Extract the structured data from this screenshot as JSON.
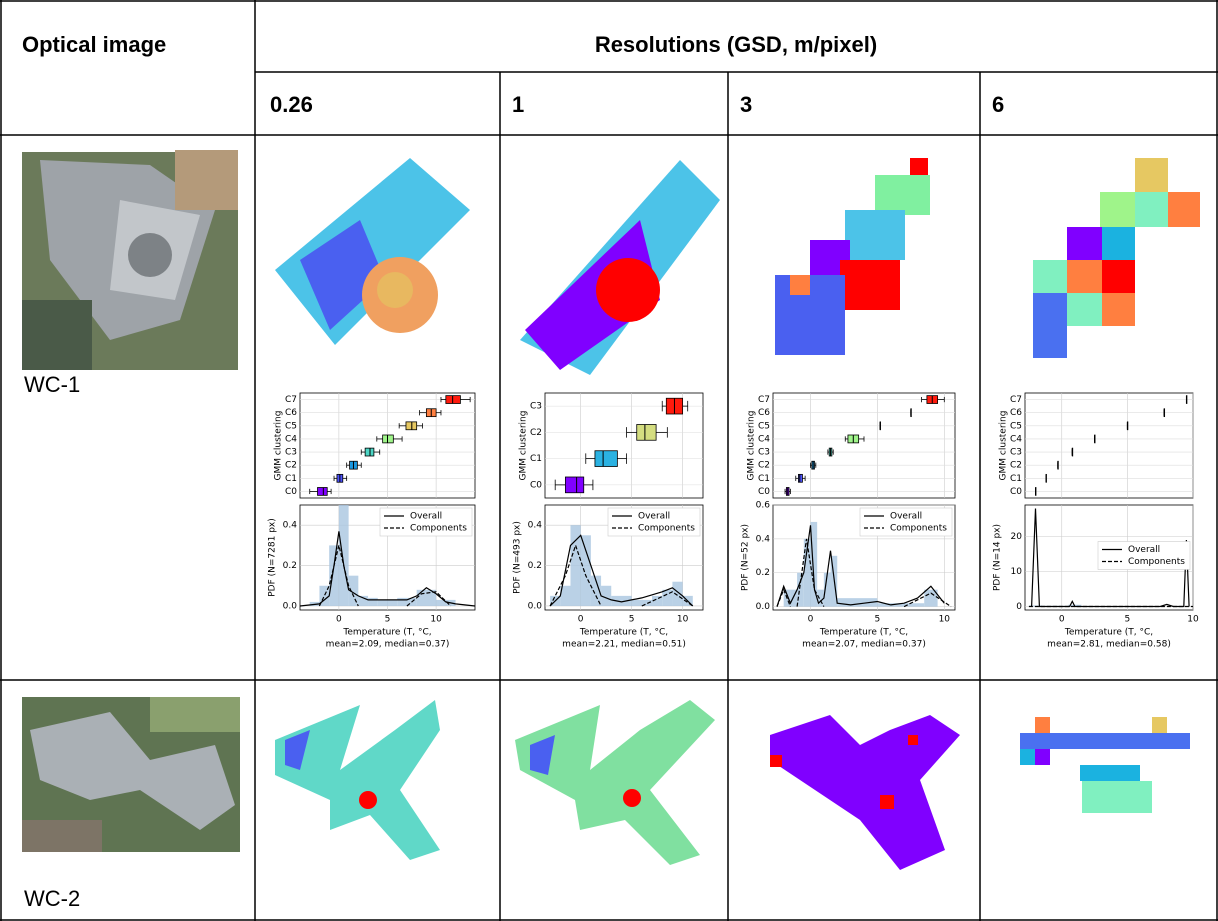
{
  "table": {
    "header": {
      "first": "Optical image",
      "span": "Resolutions (GSD, m/pixel)"
    },
    "resolutions": [
      "0.26",
      "1",
      "3",
      "6"
    ],
    "rows": [
      {
        "label": "WC-1"
      },
      {
        "label": "WC-2"
      }
    ],
    "panels": [
      {
        "type": "box_pdf",
        "box_ylabel": "GMM clustering",
        "xlim": [
          -4,
          14
        ],
        "xticks": [
          0,
          5,
          10
        ],
        "categories": [
          "C0",
          "C1",
          "C2",
          "C3",
          "C4",
          "C5",
          "C6",
          "C7"
        ],
        "colors": [
          "#8000ff",
          "#4a50f9",
          "#1996de",
          "#4cd4c4",
          "#9ff48a",
          "#e6c862",
          "#ff7f40",
          "#ff1a0d"
        ],
        "stats": [
          [
            -3,
            -2.2,
            -1.6,
            -1.2,
            -0.8
          ],
          [
            -0.5,
            -0.2,
            0.1,
            0.4,
            0.8
          ],
          [
            0.8,
            1.1,
            1.5,
            1.9,
            2.3
          ],
          [
            2.3,
            2.7,
            3.2,
            3.6,
            4.2
          ],
          [
            3.9,
            4.5,
            5,
            5.6,
            6.5
          ],
          [
            6.2,
            6.9,
            7.5,
            8,
            8.6
          ],
          [
            8.3,
            9,
            9.5,
            10,
            10.5
          ],
          [
            10.5,
            11,
            11.7,
            12.5,
            13.5
          ]
        ],
        "pdf": {
          "ylabel": "PDF (N=7281 px)",
          "xlabel": [
            "Temperature (T, °C,",
            "mean=2.09, median=0.37)"
          ],
          "ylim": [
            -0.02,
            0.5
          ],
          "yticks": [
            {
              "value": 0,
              "label": "0.0"
            },
            0.2,
            0.4
          ],
          "legend": "upper right",
          "hist_color": "#a9c6e0",
          "bins": [
            -3,
            -2,
            -1,
            0,
            1,
            2,
            3,
            4,
            6,
            8,
            10,
            12
          ],
          "counts": [
            0.02,
            0.1,
            0.3,
            0.5,
            0.15,
            0.05,
            0.04,
            0.03,
            0.04,
            0.08,
            0.03
          ],
          "series": [
            {
              "name": "Overall",
              "style": "solid",
              "x": [
                -4,
                -2,
                -1,
                -0.5,
                0,
                0.5,
                1,
                2,
                3,
                5,
                7,
                8,
                9,
                10,
                11,
                12,
                14
              ],
              "y": [
                0,
                0.01,
                0.05,
                0.2,
                0.37,
                0.2,
                0.08,
                0.05,
                0.03,
                0.03,
                0.03,
                0.05,
                0.09,
                0.06,
                0.02,
                0.01,
                0
              ]
            },
            {
              "name": "Components",
              "style": "dashed",
              "x": [
                -2,
                -1,
                0,
                1,
                2,
                null,
                7,
                8.5,
                10,
                11.5
              ],
              "y": [
                0,
                0.1,
                0.3,
                0.1,
                0,
                null,
                0,
                0.06,
                0.07,
                0
              ]
            }
          ]
        }
      },
      {
        "type": "box_pdf",
        "box_ylabel": "GMM clustering",
        "xlim": [
          -3.5,
          12
        ],
        "xticks": [
          0,
          5,
          10
        ],
        "categories": [
          "C0",
          "C1",
          "C2",
          "C3"
        ],
        "colors": [
          "#8000ff",
          "#2bb2e2",
          "#d4dd80",
          "#ff1a0d"
        ],
        "stats": [
          [
            -2.5,
            -1.5,
            -0.4,
            0.3,
            1.2
          ],
          [
            0.5,
            1.4,
            2.2,
            3.6,
            4.5
          ],
          [
            4.5,
            5.5,
            6.3,
            7.4,
            8.5
          ],
          [
            8,
            8.4,
            9.2,
            10,
            10.5
          ]
        ],
        "pdf": {
          "ylabel": "PDF (N=493 px)",
          "xlabel": [
            "Temperature (T, °C,",
            "mean=2.21, median=0.51)"
          ],
          "ylim": [
            -0.02,
            0.5
          ],
          "yticks": [
            {
              "value": 0,
              "label": "0.0"
            },
            0.2,
            0.4
          ],
          "legend": "upper right",
          "hist_color": "#a9c6e0",
          "bins": [
            -3,
            -2,
            -1,
            0,
            1,
            2,
            3,
            5,
            7,
            8,
            9,
            10,
            11
          ],
          "counts": [
            0.05,
            0.1,
            0.4,
            0.35,
            0.15,
            0.1,
            0.05,
            0.03,
            0.05,
            0.08,
            0.12,
            0.05
          ],
          "series": [
            {
              "name": "Overall",
              "style": "solid",
              "x": [
                -3,
                -2,
                -1,
                0,
                1,
                2,
                3,
                4,
                6,
                8,
                9,
                10,
                11
              ],
              "y": [
                0,
                0.05,
                0.3,
                0.35,
                0.2,
                0.05,
                0.03,
                0.02,
                0.04,
                0.07,
                0.09,
                0.05,
                0
              ]
            },
            {
              "name": "Components",
              "style": "dashed",
              "x": [
                -3,
                -1.5,
                -0.5,
                0.5,
                2,
                null,
                6,
                9,
                11
              ],
              "y": [
                0,
                0.15,
                0.3,
                0.15,
                0,
                null,
                0,
                0.07,
                0
              ]
            }
          ]
        }
      },
      {
        "type": "box_pdf",
        "box_ylabel": "GMM clustering",
        "xlim": [
          -2.8,
          10.8
        ],
        "xticks": [
          0,
          5,
          10
        ],
        "categories": [
          "C0",
          "C1",
          "C2",
          "C3",
          "C4",
          "C5",
          "C6",
          "C7"
        ],
        "colors": [
          "#8000ff",
          "#4a50f9",
          "#1996de",
          "#4cd4c4",
          "#9ff48a",
          "#e6c862",
          "#ff7f40",
          "#ff1a0d"
        ],
        "stats": [
          [
            -1.9,
            -1.8,
            -1.7,
            -1.6,
            -1.5
          ],
          [
            -1.1,
            -0.9,
            -0.8,
            -0.6,
            -0.4
          ],
          [
            0,
            0.1,
            0.2,
            0.3,
            0.4
          ],
          [
            1.3,
            1.4,
            1.5,
            1.6,
            1.7
          ],
          [
            2.6,
            2.8,
            3.2,
            3.6,
            4
          ],
          [
            5.2,
            5.2,
            5.2,
            5.2,
            5.2
          ],
          [
            7.5,
            7.5,
            7.5,
            7.5,
            7.5
          ],
          [
            8.3,
            8.7,
            9.1,
            9.5,
            10
          ]
        ],
        "pdf": {
          "ylabel": "PDF (N=52 px)",
          "xlabel": [
            "Temperature (T, °C,",
            "mean=2.07, median=0.37)"
          ],
          "ylim": [
            -0.02,
            0.6
          ],
          "yticks": [
            {
              "value": 0,
              "label": "0.0"
            },
            0.2,
            0.4,
            0.6
          ],
          "legend": "upper right",
          "hist_color": "#a9c6e0",
          "bins": [
            -2,
            -1.5,
            -1,
            -0.5,
            0,
            0.5,
            1,
            1.5,
            2,
            5,
            8.5,
            9.5
          ],
          "counts": [
            0.1,
            0.1,
            0.2,
            0.4,
            0.5,
            0.1,
            0.2,
            0.3,
            0.05,
            0.02,
            0.1
          ],
          "series": [
            {
              "name": "Overall",
              "style": "solid",
              "x": [
                -2.5,
                -2,
                -1.5,
                -1,
                -0.5,
                0,
                0.3,
                0.6,
                1,
                1.5,
                2,
                3,
                4,
                5,
                6,
                7,
                8,
                9,
                10
              ],
              "y": [
                0,
                0.12,
                0.02,
                0.1,
                0.2,
                0.48,
                0.1,
                0.02,
                0.05,
                0.33,
                0.02,
                0.01,
                0.02,
                0.03,
                0.01,
                0.02,
                0.05,
                0.12,
                0.02
              ]
            },
            {
              "name": "Components",
              "style": "dashed",
              "x": [
                -2.5,
                -2,
                -1.5,
                null,
                -1,
                -0.3,
                0.3,
                1,
                null,
                7,
                9,
                10.5
              ],
              "y": [
                0,
                0.1,
                0,
                null,
                0,
                0.4,
                0.1,
                0,
                null,
                0,
                0.08,
                0
              ]
            }
          ]
        }
      },
      {
        "type": "box_pdf",
        "box_ylabel": "GMM clustering",
        "xlim": [
          -2.8,
          10
        ],
        "xticks": [
          0,
          5,
          10
        ],
        "categories": [
          "C0",
          "C1",
          "C2",
          "C3",
          "C4",
          "C5",
          "C6",
          "C7"
        ],
        "colors": [
          "#8000ff",
          "#4a50f9",
          "#1996de",
          "#4cd4c4",
          "#9ff48a",
          "#e6c862",
          "#ff7f40",
          "#ff1a0d"
        ],
        "stats": [
          [
            -2,
            -2,
            -2,
            -2,
            -2
          ],
          [
            -1.2,
            -1.2,
            -1.2,
            -1.2,
            -1.2
          ],
          [
            -0.3,
            -0.3,
            -0.3,
            -0.3,
            -0.3
          ],
          [
            0.8,
            0.8,
            0.8,
            0.8,
            0.8
          ],
          [
            2.5,
            2.5,
            2.5,
            2.5,
            2.5
          ],
          [
            5,
            5,
            5,
            5,
            5
          ],
          [
            7.8,
            7.8,
            7.8,
            7.8,
            7.8
          ],
          [
            9.5,
            9.5,
            9.5,
            9.5,
            9.5
          ]
        ],
        "pdf": {
          "ylabel": "PDF (N=14 px)",
          "xlabel": [
            "Temperature (T, °C,",
            "mean=2.81, median=0.58)"
          ],
          "ylim": [
            -1,
            29
          ],
          "yticks": [
            0,
            10,
            20
          ],
          "legend": "center right",
          "hist_color": "#a9c6e0",
          "bins": [
            -2.5,
            -1.5,
            -0.5,
            0.5,
            1.5
          ],
          "counts": [
            0.3,
            0.2,
            0.2,
            0.5
          ],
          "series": [
            {
              "name": "Overall",
              "style": "solid",
              "x": [
                -2.3,
                -2,
                -1.7,
                0,
                0.6,
                0.8,
                1,
                2,
                7.5,
                8,
                8.5,
                9.3,
                9.5,
                9.7
              ],
              "y": [
                0,
                28,
                0,
                0,
                0,
                1.5,
                0,
                0,
                0,
                0.6,
                0,
                0,
                19,
                0
              ]
            },
            {
              "name": "Components",
              "style": "dashed",
              "x": [
                -2.5,
                10
              ],
              "y": [
                0,
                0
              ]
            }
          ]
        }
      }
    ]
  }
}
